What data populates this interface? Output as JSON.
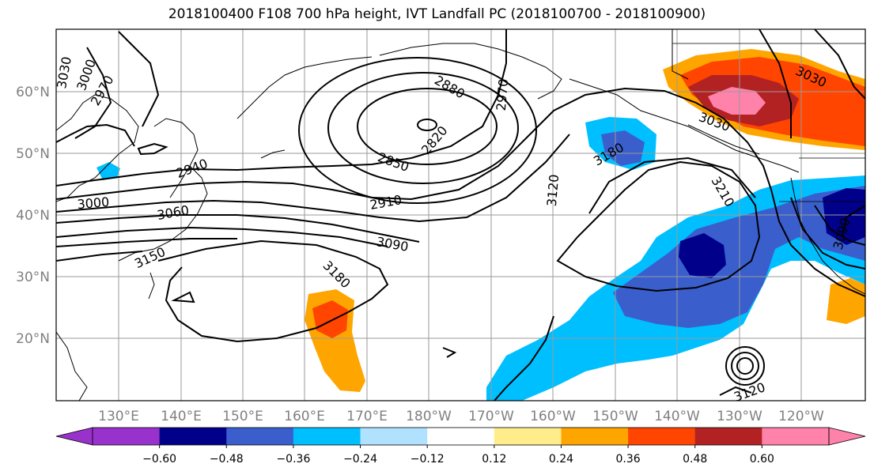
{
  "title": "2018100400 F108 700 hPa height, IVT Landfall PC (2018100700 - 2018100900)",
  "latitude_labels": [
    "60°N",
    "50°N",
    "40°N",
    "30°N",
    "20°N"
  ],
  "longitude_labels": [
    "130°E",
    "140°E",
    "150°E",
    "160°E",
    "170°E",
    "180°W",
    "170°W",
    "160°W",
    "150°W",
    "140°W",
    "130°W",
    "120°W"
  ],
  "contour_labels": [
    "3030",
    "3000",
    "2970",
    "2880",
    "2970",
    "2820",
    "2850",
    "2940",
    "3000",
    "3060",
    "3150",
    "2910",
    "3090",
    "3180",
    "3120",
    "3180",
    "3210",
    "3030",
    "3030",
    "3090",
    "3120"
  ],
  "colorbar": {
    "colors": [
      "#9932cc",
      "#00008b",
      "#3a5fcd",
      "#00bfff",
      "#b0e2ff",
      "#ffffff",
      "#ffec8b",
      "#ffa500",
      "#ff4500",
      "#b22222",
      "#ff82ab",
      "#ff82ab"
    ],
    "tick_labels": [
      "−0.60",
      "−0.48",
      "−0.36",
      "−0.24",
      "−0.12",
      "0.12",
      "0.24",
      "0.36",
      "0.48",
      "0.60"
    ]
  }
}
